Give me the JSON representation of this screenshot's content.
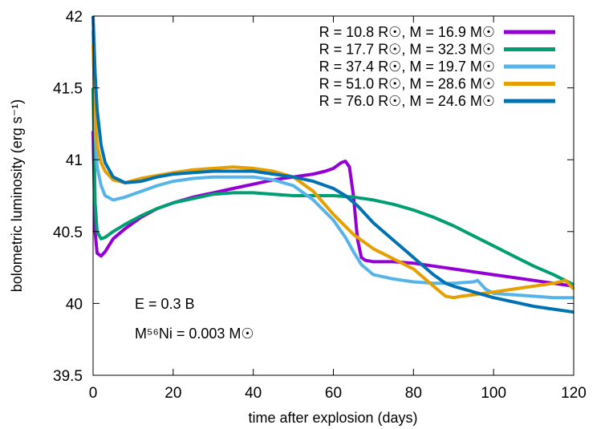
{
  "chart_data": {
    "type": "line",
    "xlabel": "time after explosion (days)",
    "ylabel": "bolometric luminosity (erg s⁻¹)",
    "xlim": [
      0,
      120
    ],
    "ylim": [
      39.5,
      42
    ],
    "xticks": [
      "0",
      "20",
      "40",
      "60",
      "80",
      "100",
      "120"
    ],
    "yticks": [
      "39.5",
      "40",
      "40.5",
      "41",
      "41.5",
      "42"
    ],
    "grid": false,
    "legend_position": "top-right",
    "annotations": {
      "energy": "E = 0.3 B",
      "nickel": "M⁵⁶Ni = 0.003 M☉"
    },
    "series": [
      {
        "name": "R = 10.8 R☉, M = 16.9 M☉",
        "color": "#9400d3",
        "x": [
          0,
          0.5,
          1,
          2,
          3,
          5,
          8,
          12,
          16,
          20,
          25,
          30,
          35,
          40,
          45,
          50,
          55,
          58,
          60,
          62,
          63,
          64,
          65,
          66,
          67,
          68,
          70,
          75,
          80,
          85,
          90,
          95,
          100,
          105,
          110,
          115,
          120
        ],
        "y": [
          41.2,
          40.5,
          40.35,
          40.33,
          40.36,
          40.45,
          40.52,
          40.6,
          40.66,
          40.7,
          40.74,
          40.77,
          40.8,
          40.83,
          40.86,
          40.88,
          40.9,
          40.92,
          40.94,
          40.98,
          40.99,
          40.95,
          40.75,
          40.45,
          40.32,
          40.3,
          40.29,
          40.29,
          40.28,
          40.26,
          40.24,
          40.22,
          40.2,
          40.18,
          40.16,
          40.14,
          40.12
        ]
      },
      {
        "name": "R = 17.7 R☉, M = 32.3 M☉",
        "color": "#009e73",
        "x": [
          0,
          0.5,
          1,
          2,
          3,
          5,
          8,
          12,
          16,
          20,
          25,
          30,
          35,
          40,
          45,
          50,
          55,
          60,
          65,
          70,
          75,
          80,
          85,
          90,
          95,
          100,
          105,
          110,
          115,
          120
        ],
        "y": [
          41.5,
          40.7,
          40.5,
          40.45,
          40.46,
          40.5,
          40.55,
          40.61,
          40.66,
          40.7,
          40.73,
          40.76,
          40.77,
          40.77,
          40.76,
          40.75,
          40.75,
          40.75,
          40.74,
          40.72,
          40.69,
          40.65,
          40.6,
          40.54,
          40.47,
          40.4,
          40.33,
          40.26,
          40.2,
          40.13
        ]
      },
      {
        "name": "R = 37.4 R☉, M = 19.7 M☉",
        "color": "#56b4e9",
        "x": [
          0,
          0.5,
          1,
          2,
          3,
          5,
          8,
          12,
          16,
          20,
          25,
          30,
          35,
          40,
          45,
          50,
          55,
          60,
          63,
          65,
          67,
          70,
          75,
          80,
          85,
          90,
          95,
          96,
          98,
          100,
          105,
          110,
          115,
          120
        ],
        "y": [
          41.9,
          41.2,
          40.95,
          40.82,
          40.75,
          40.72,
          40.74,
          40.78,
          40.82,
          40.85,
          40.87,
          40.88,
          40.88,
          40.88,
          40.86,
          40.82,
          40.72,
          40.58,
          40.46,
          40.36,
          40.27,
          40.2,
          40.17,
          40.15,
          40.14,
          40.14,
          40.15,
          40.16,
          40.1,
          40.07,
          40.06,
          40.05,
          40.04,
          40.04
        ]
      },
      {
        "name": "R = 51.0 R☉, M = 28.6 M☉",
        "color": "#e69f00",
        "x": [
          0,
          0.5,
          1,
          2,
          3,
          5,
          8,
          12,
          16,
          20,
          25,
          30,
          35,
          40,
          45,
          50,
          55,
          60,
          65,
          70,
          75,
          80,
          85,
          88,
          90,
          92,
          95,
          100,
          105,
          110,
          115,
          118,
          120
        ],
        "y": [
          41.8,
          41.3,
          41.1,
          40.98,
          40.92,
          40.86,
          40.84,
          40.87,
          40.89,
          40.91,
          40.93,
          40.94,
          40.95,
          40.94,
          40.92,
          40.88,
          40.78,
          40.62,
          40.48,
          40.38,
          40.31,
          40.24,
          40.12,
          40.05,
          40.04,
          40.05,
          40.06,
          40.08,
          40.1,
          40.12,
          40.14,
          40.16,
          40.1
        ]
      },
      {
        "name": "R = 76.0 R☉, M = 24.6 M☉",
        "color": "#0072b2",
        "x": [
          0,
          0.5,
          1,
          2,
          3,
          5,
          8,
          12,
          16,
          20,
          25,
          30,
          35,
          40,
          45,
          50,
          55,
          60,
          63,
          66,
          70,
          75,
          80,
          85,
          88,
          90,
          95,
          100,
          105,
          110,
          115,
          120
        ],
        "y": [
          42.0,
          41.6,
          41.35,
          41.1,
          40.98,
          40.88,
          40.84,
          40.85,
          40.88,
          40.9,
          40.91,
          40.92,
          40.92,
          40.92,
          40.9,
          40.88,
          40.85,
          40.8,
          40.75,
          40.68,
          40.56,
          40.44,
          40.32,
          40.2,
          40.14,
          40.12,
          40.08,
          40.04,
          40.01,
          39.98,
          39.96,
          39.94
        ]
      }
    ]
  }
}
